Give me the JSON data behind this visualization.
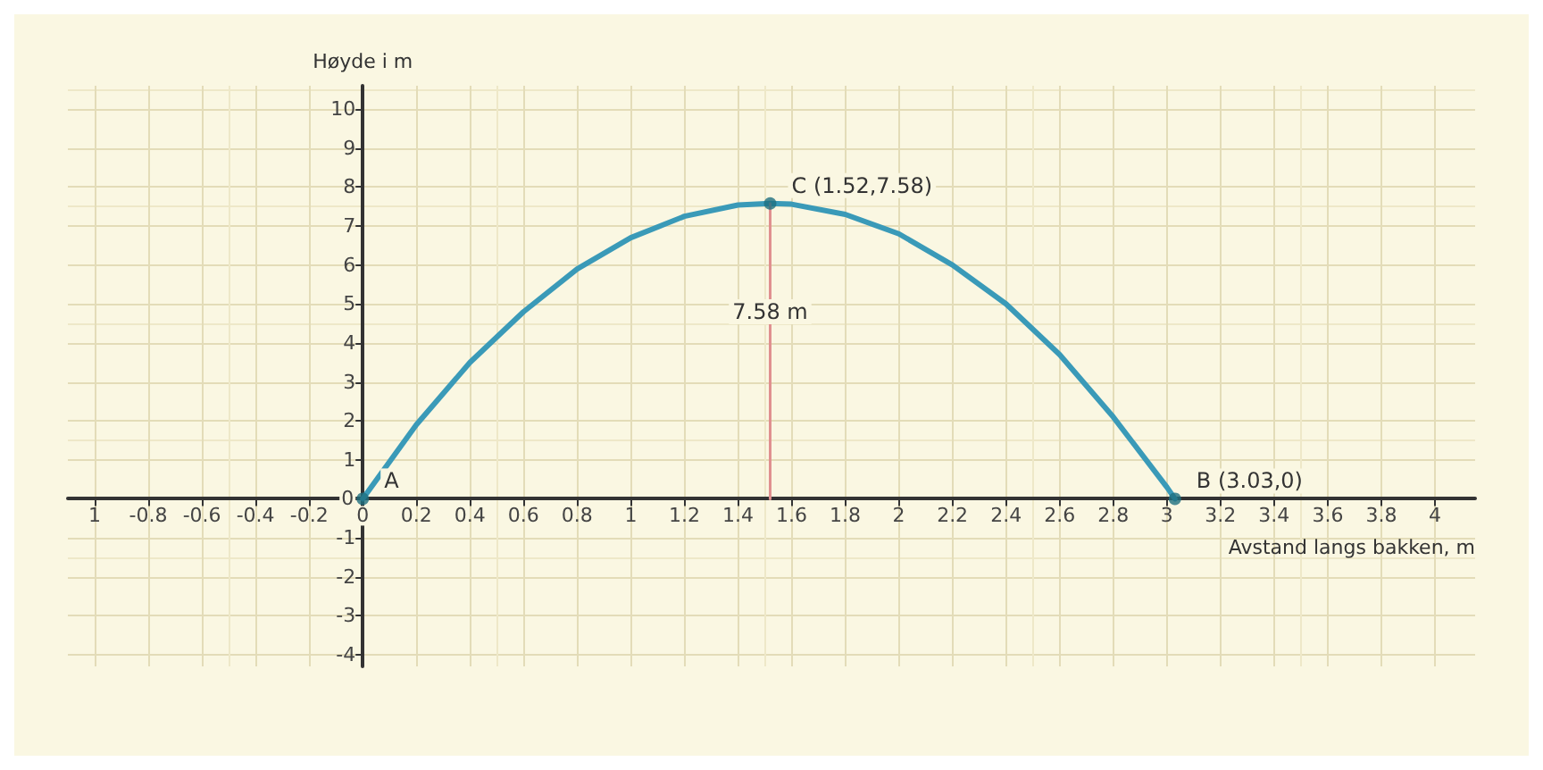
{
  "chart_data": {
    "type": "line",
    "xlabel": "Avstand langs bakken, m",
    "ylabel": "Høyde i m",
    "xlim": [
      -1.1,
      4.15
    ],
    "ylim": [
      -4.3,
      10.6
    ],
    "xticks": [
      {
        "value": -1,
        "label": "1"
      },
      -0.8,
      -0.6,
      -0.4,
      -0.2,
      0,
      0.2,
      0.4,
      0.6,
      0.8,
      1,
      1.2,
      1.4,
      1.6,
      1.8,
      2,
      2.2,
      2.4,
      2.6,
      2.8,
      3,
      3.2,
      3.4,
      3.6,
      3.8,
      4
    ],
    "yticks": [
      -4,
      -3,
      -2,
      -1,
      0,
      1,
      2,
      3,
      4,
      5,
      6,
      7,
      8,
      9,
      10
    ],
    "grid": true,
    "marker": "none",
    "line_style": "solid",
    "series": [
      {
        "color": "#3a9ab8",
        "x": [
          0,
          0.2,
          0.4,
          0.6,
          0.8,
          1,
          1.2,
          1.4,
          1.52,
          1.6,
          1.8,
          2,
          2.2,
          2.4,
          2.6,
          2.8,
          3,
          3.03
        ],
        "values": [
          0,
          1.9,
          3.5,
          4.8,
          5.9,
          6.7,
          7.25,
          7.54,
          7.58,
          7.56,
          7.3,
          6.8,
          6,
          5,
          3.7,
          2.1,
          0.3,
          0
        ]
      },
      {
        "color": "#e09090",
        "x": [
          1.52,
          1.52
        ],
        "values": [
          0,
          7.58
        ]
      },
      {
        "type": "scatter",
        "marker": "circle",
        "color": "#1f6f80",
        "x": [
          0,
          1.52,
          3.03
        ],
        "values": [
          0,
          7.58,
          0
        ]
      }
    ],
    "annotations": [
      {
        "text": "A",
        "x": 0,
        "y": 0
      },
      {
        "text": "C (1.52,7.58)",
        "x": 1.52,
        "y": 7.58
      },
      {
        "text": "B (3.03,0)",
        "x": 3.03,
        "y": 0
      },
      {
        "text": "7.58 m",
        "x": 1.52,
        "y": 4.8
      }
    ]
  }
}
